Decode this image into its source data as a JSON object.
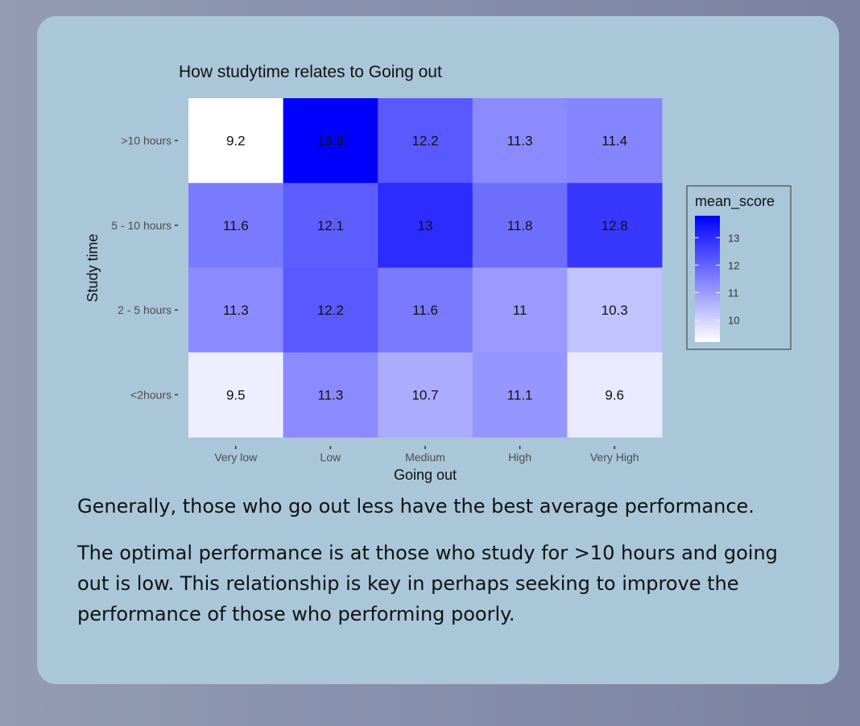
{
  "chart_data": {
    "type": "heatmap",
    "title": "How studytime relates to Going out",
    "xlabel": "Going out",
    "ylabel": "Study time",
    "x_categories": [
      "Very low",
      "Low",
      "Medium",
      "High",
      "Very High"
    ],
    "y_categories": [
      ">10 hours",
      "5 - 10 hours",
      "2 - 5 hours",
      "<2hours"
    ],
    "values": [
      [
        9.2,
        13.8,
        12.2,
        11.3,
        11.4
      ],
      [
        11.6,
        12.1,
        13,
        11.8,
        12.8
      ],
      [
        11.3,
        12.2,
        11.6,
        11,
        10.3
      ],
      [
        9.5,
        11.3,
        10.7,
        11.1,
        9.6
      ]
    ],
    "legend": {
      "title": "mean_score",
      "placement": "right",
      "ticks": [
        13,
        12,
        11,
        10
      ]
    },
    "color_low": "#ffffff",
    "color_high": "#0000ff",
    "value_range": [
      9.2,
      13.8
    ]
  },
  "text": {
    "para1": "Generally, those who go out less have the best average performance.",
    "para2": "The optimal performance is at those who study for >10 hours and going out is low. This relationship is key in perhaps seeking to improve the performance of those who performing poorly."
  },
  "colors": {
    "page_background": "#8891ad",
    "card_background": "#a9c7d8"
  }
}
